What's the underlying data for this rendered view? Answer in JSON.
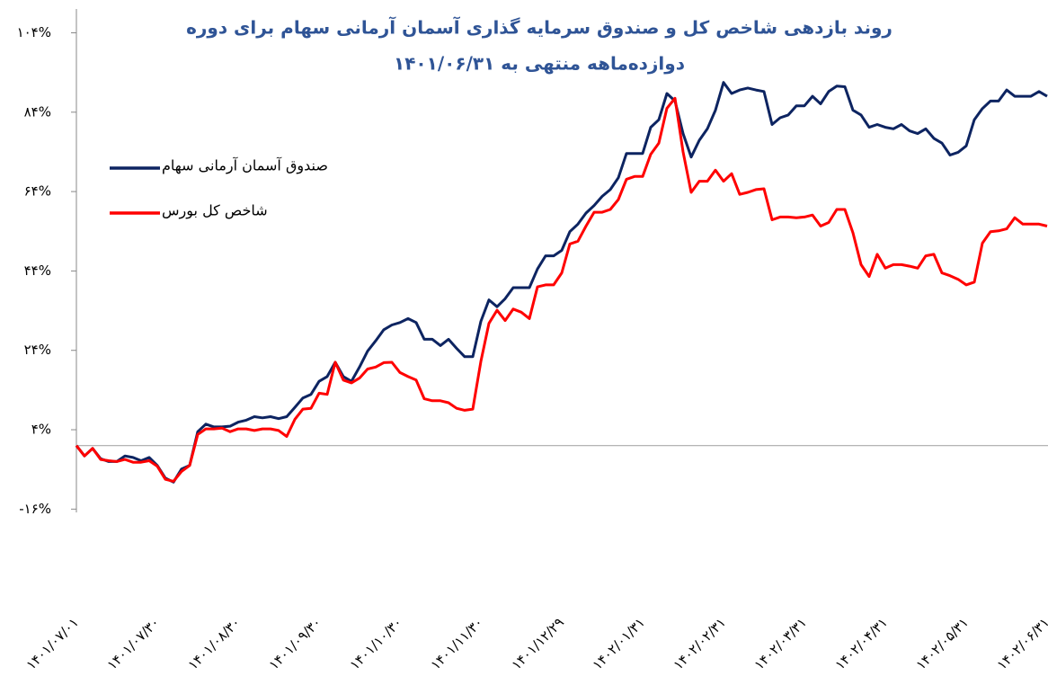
{
  "chart_data": {
    "type": "line",
    "title": "روند بازدهی شاخص کل و صندوق سرمایه گذاری آسمان آرمانی سهام برای دوره",
    "subtitle": "دوازده‌ماهه منتهی به ۱۴۰۱/۰۶/۳۱",
    "categories": [
      "۱۴۰۱/۰۷/۰۱",
      null,
      null,
      null,
      null,
      null,
      null,
      null,
      null,
      null,
      "۱۴۰۱/۰۷/۳۰",
      null,
      null,
      null,
      null,
      null,
      null,
      null,
      null,
      null,
      "۱۴۰۱/۰۸/۳۰",
      null,
      null,
      null,
      null,
      null,
      null,
      null,
      null,
      null,
      "۱۴۰۱/۰۹/۳۰",
      null,
      null,
      null,
      null,
      null,
      null,
      null,
      null,
      null,
      "۱۴۰۱/۱۰/۳۰",
      null,
      null,
      null,
      null,
      null,
      null,
      null,
      null,
      null,
      "۱۴۰۱/۱۱/۳۰",
      null,
      null,
      null,
      null,
      null,
      null,
      null,
      null,
      null,
      "۱۴۰۱/۱۲/۲۹",
      null,
      null,
      null,
      null,
      null,
      null,
      null,
      null,
      null,
      "۱۴۰۲/۰۱/۳۱",
      null,
      null,
      null,
      null,
      null,
      null,
      null,
      null,
      null,
      "۱۴۰۲/۰۲/۳۱",
      null,
      null,
      null,
      null,
      null,
      null,
      null,
      null,
      null,
      "۱۴۰۲/۰۳/۳۱",
      null,
      null,
      null,
      null,
      null,
      null,
      null,
      null,
      null,
      "۱۴۰۲/۰۴/۳۱",
      null,
      null,
      null,
      null,
      null,
      null,
      null,
      null,
      null,
      "۱۴۰۲/۰۵/۳۱",
      null,
      null,
      null,
      null,
      null,
      null,
      null,
      null,
      null,
      "۱۴۰۲/۰۶/۳۱"
    ],
    "series": [
      {
        "name": "صندوق آسمان آرمانی سهام",
        "color": "#0d2461",
        "values": [
          0,
          -2.6,
          -0.7,
          -3.3,
          -4,
          -4,
          -2.6,
          -3,
          -3.8,
          -3,
          -5,
          -8.2,
          -9.2,
          -5.9,
          -5,
          3.5,
          5.4,
          4.7,
          4.7,
          4.9,
          5.9,
          6.4,
          7.3,
          7,
          7.3,
          6.8,
          7.3,
          9.6,
          12,
          12.9,
          16.2,
          17.4,
          21,
          17.4,
          16.2,
          19.8,
          23.8,
          26.4,
          29.2,
          30.4,
          31,
          32,
          31,
          26.8,
          26.8,
          25.2,
          26.8,
          24.5,
          22.4,
          22.4,
          31.3,
          36.7,
          35,
          37,
          39.8,
          39.8,
          39.8,
          44.5,
          47.8,
          47.8,
          49.2,
          53.9,
          55.8,
          58.6,
          60.5,
          62.8,
          64.5,
          67.5,
          73.6,
          73.6,
          73.6,
          80.2,
          82.1,
          88.7,
          86.8,
          78.6,
          72.7,
          76.9,
          79.8,
          84.5,
          91.5,
          88.7,
          89.6,
          90.1,
          89.6,
          89.2,
          80.9,
          82.6,
          83.3,
          85.6,
          85.6,
          88,
          86.1,
          89.2,
          90.6,
          90.4,
          84.5,
          83.3,
          80.2,
          80.9,
          80.2,
          79.8,
          80.9,
          79.3,
          78.6,
          79.8,
          77.4,
          76.2,
          73.2,
          73.9,
          75.5,
          82.1,
          84.9,
          86.8,
          86.8,
          89.6,
          88,
          88,
          88,
          89.2,
          88
        ]
      },
      {
        "name": "شاخص کل بورس",
        "color": "#ff0000",
        "values": [
          0,
          -2.6,
          -0.7,
          -3.5,
          -3.8,
          -4,
          -3.5,
          -4.2,
          -4.2,
          -3.8,
          -5.2,
          -8.5,
          -9,
          -6.5,
          -5,
          2.8,
          4.2,
          4.2,
          4.4,
          3.5,
          4.2,
          4.2,
          3.8,
          4.2,
          4.2,
          3.8,
          2.3,
          6.6,
          9.2,
          9.4,
          13.2,
          12.9,
          21,
          16.5,
          15.8,
          17,
          19.3,
          19.8,
          20.9,
          21,
          18.4,
          17.4,
          16.5,
          11.8,
          11.3,
          11.3,
          10.8,
          9.4,
          8.9,
          9.2,
          21.2,
          30.8,
          34.1,
          31.5,
          34.4,
          33.6,
          32,
          40,
          40.5,
          40.5,
          43.5,
          50.8,
          51.5,
          55.3,
          58.8,
          58.8,
          59.5,
          62,
          67.1,
          67.8,
          67.8,
          73.4,
          76.2,
          85,
          87.5,
          74,
          63.8,
          66.6,
          66.6,
          69.4,
          66.6,
          68.5,
          63.3,
          63.8,
          64.5,
          64.7,
          56.9,
          57.6,
          57.6,
          57.4,
          57.6,
          58.1,
          55.3,
          56.2,
          59.5,
          59.5,
          53.6,
          45.6,
          42.6,
          48.2,
          44.7,
          45.6,
          45.6,
          45.2,
          44.7,
          47.8,
          48.2,
          43.5,
          42.8,
          41.9,
          40.5,
          41.2,
          51,
          53.9,
          54.1,
          54.6,
          57.4,
          55.8,
          55.8,
          55.8,
          55.3
        ]
      }
    ],
    "ylim": [
      -20,
      110
    ],
    "yticks": [
      {
        "value": -16,
        "label": "-۱۶%"
      },
      {
        "value": 4,
        "label": "۴%"
      },
      {
        "value": 24,
        "label": "۲۴%"
      },
      {
        "value": 44,
        "label": "۴۴%"
      },
      {
        "value": 64,
        "label": "۶۴%"
      },
      {
        "value": 84,
        "label": "۸۴%"
      },
      {
        "value": 104,
        "label": "۱۰۴%"
      }
    ],
    "grid": false,
    "legend": "left"
  }
}
